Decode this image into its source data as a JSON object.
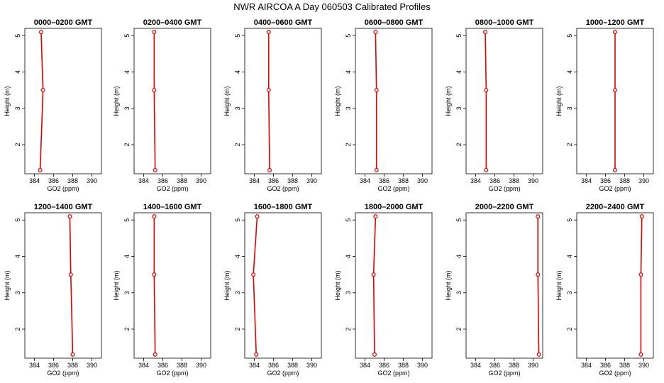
{
  "title": "NWR AIRCOA A  Day 060503  Calibrated Profiles",
  "colors": {
    "line": "#e00000",
    "axis": "#000000"
  },
  "chart_data": [
    {
      "type": "line",
      "title": "0000–0200 GMT",
      "xlabel": "GO2 (ppm)",
      "ylabel": "Height (m)",
      "xlim": [
        383,
        391
      ],
      "ylim": [
        1.2,
        5.2
      ],
      "xticks": [
        "384",
        "386",
        "388",
        "390"
      ],
      "yticks": [
        "2",
        "3",
        "4",
        "5"
      ],
      "grid": false,
      "series": [
        {
          "x": [
            384.6,
            384.9,
            384.7
          ],
          "y": [
            1.3,
            3.5,
            5.1
          ]
        }
      ]
    },
    {
      "type": "line",
      "title": "0200–0400 GMT",
      "xlabel": "GO2 (ppm)",
      "ylabel": "Height (m)",
      "xlim": [
        383,
        391
      ],
      "ylim": [
        1.2,
        5.2
      ],
      "xticks": [
        "384",
        "386",
        "388",
        "390"
      ],
      "yticks": [
        "2",
        "3",
        "4",
        "5"
      ],
      "grid": false,
      "series": [
        {
          "x": [
            385.2,
            385.1,
            385.1
          ],
          "y": [
            1.3,
            3.5,
            5.1
          ]
        }
      ]
    },
    {
      "type": "line",
      "title": "0400–0600 GMT",
      "xlabel": "GO2 (ppm)",
      "ylabel": "Height (m)",
      "xlim": [
        383,
        391
      ],
      "ylim": [
        1.2,
        5.2
      ],
      "xticks": [
        "384",
        "386",
        "388",
        "390"
      ],
      "yticks": [
        "2",
        "3",
        "4",
        "5"
      ],
      "grid": false,
      "series": [
        {
          "x": [
            385.6,
            385.5,
            385.5
          ],
          "y": [
            1.3,
            3.5,
            5.1
          ]
        }
      ]
    },
    {
      "type": "line",
      "title": "0600–0800 GMT",
      "xlabel": "GO2 (ppm)",
      "ylabel": "Height (m)",
      "xlim": [
        383,
        391
      ],
      "ylim": [
        1.2,
        5.2
      ],
      "xticks": [
        "384",
        "386",
        "388",
        "390"
      ],
      "yticks": [
        "2",
        "3",
        "4",
        "5"
      ],
      "grid": false,
      "series": [
        {
          "x": [
            385.2,
            385.2,
            385.1
          ],
          "y": [
            1.3,
            3.5,
            5.1
          ]
        }
      ]
    },
    {
      "type": "line",
      "title": "0800–1000 GMT",
      "xlabel": "GO2 (ppm)",
      "ylabel": "Height (m)",
      "xlim": [
        383,
        391
      ],
      "ylim": [
        1.2,
        5.2
      ],
      "xticks": [
        "384",
        "386",
        "388",
        "390"
      ],
      "yticks": [
        "2",
        "3",
        "4",
        "5"
      ],
      "grid": false,
      "series": [
        {
          "x": [
            385.1,
            385.1,
            385.0
          ],
          "y": [
            1.3,
            3.5,
            5.1
          ]
        }
      ]
    },
    {
      "type": "line",
      "title": "1000–1200 GMT",
      "xlabel": "GO2 (ppm)",
      "ylabel": "Height (m)",
      "xlim": [
        383,
        391
      ],
      "ylim": [
        1.2,
        5.2
      ],
      "xticks": [
        "384",
        "386",
        "388",
        "390"
      ],
      "yticks": [
        "2",
        "3",
        "4",
        "5"
      ],
      "grid": false,
      "series": [
        {
          "x": [
            387.0,
            387.0,
            387.0
          ],
          "y": [
            1.3,
            3.5,
            5.1
          ]
        }
      ]
    },
    {
      "type": "line",
      "title": "1200–1400 GMT",
      "xlabel": "GO2 (ppm)",
      "ylabel": "Height (m)",
      "xlim": [
        383,
        391
      ],
      "ylim": [
        1.2,
        5.2
      ],
      "xticks": [
        "384",
        "386",
        "388",
        "390"
      ],
      "yticks": [
        "2",
        "3",
        "4",
        "5"
      ],
      "grid": false,
      "series": [
        {
          "x": [
            388.0,
            387.8,
            387.7
          ],
          "y": [
            1.3,
            3.5,
            5.1
          ]
        }
      ]
    },
    {
      "type": "line",
      "title": "1400–1600 GMT",
      "xlabel": "GO2 (ppm)",
      "ylabel": "Height (m)",
      "xlim": [
        383,
        391
      ],
      "ylim": [
        1.2,
        5.2
      ],
      "xticks": [
        "384",
        "386",
        "388",
        "390"
      ],
      "yticks": [
        "2",
        "3",
        "4",
        "5"
      ],
      "grid": false,
      "series": [
        {
          "x": [
            385.2,
            385.1,
            385.1
          ],
          "y": [
            1.3,
            3.5,
            5.1
          ]
        }
      ]
    },
    {
      "type": "line",
      "title": "1600–1800 GMT",
      "xlabel": "GO2 (ppm)",
      "ylabel": "Height (m)",
      "xlim": [
        383,
        391
      ],
      "ylim": [
        1.2,
        5.2
      ],
      "xticks": [
        "384",
        "386",
        "388",
        "390"
      ],
      "yticks": [
        "2",
        "3",
        "4",
        "5"
      ],
      "grid": false,
      "series": [
        {
          "x": [
            384.2,
            383.9,
            384.3
          ],
          "y": [
            1.3,
            3.5,
            5.1
          ]
        }
      ]
    },
    {
      "type": "line",
      "title": "1800–2000 GMT",
      "xlabel": "GO2 (ppm)",
      "ylabel": "Height (m)",
      "xlim": [
        383,
        391
      ],
      "ylim": [
        1.2,
        5.2
      ],
      "xticks": [
        "384",
        "386",
        "388",
        "390"
      ],
      "yticks": [
        "2",
        "3",
        "4",
        "5"
      ],
      "grid": false,
      "series": [
        {
          "x": [
            385.0,
            384.9,
            385.1
          ],
          "y": [
            1.3,
            3.5,
            5.1
          ]
        }
      ]
    },
    {
      "type": "line",
      "title": "2000–2200 GMT",
      "xlabel": "GO2 (ppm)",
      "ylabel": "Height (m)",
      "xlim": [
        383,
        391
      ],
      "ylim": [
        1.2,
        5.2
      ],
      "xticks": [
        "384",
        "386",
        "388",
        "390"
      ],
      "yticks": [
        "2",
        "3",
        "4",
        "5"
      ],
      "grid": false,
      "series": [
        {
          "x": [
            390.6,
            390.5,
            390.5
          ],
          "y": [
            1.3,
            3.5,
            5.1
          ]
        }
      ]
    },
    {
      "type": "line",
      "title": "2200–2400 GMT",
      "xlabel": "GO2 (ppm)",
      "ylabel": "Height (m)",
      "xlim": [
        383,
        391
      ],
      "ylim": [
        1.2,
        5.2
      ],
      "xticks": [
        "384",
        "386",
        "388",
        "390"
      ],
      "yticks": [
        "2",
        "3",
        "4",
        "5"
      ],
      "grid": false,
      "series": [
        {
          "x": [
            389.7,
            389.7,
            389.8
          ],
          "y": [
            1.3,
            3.5,
            5.1
          ]
        }
      ]
    }
  ]
}
